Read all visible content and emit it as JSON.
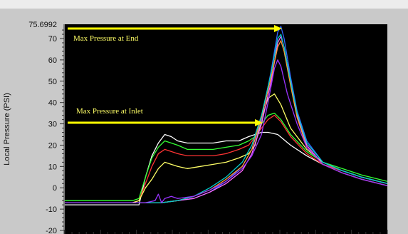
{
  "chart_data": {
    "type": "line",
    "title": "",
    "ylabel": "Local Pressure (PSI)",
    "xlabel": "",
    "ylim": [
      -20,
      75.6992
    ],
    "y_ticks": [
      -20,
      -10,
      0,
      10,
      20,
      30,
      40,
      50,
      60,
      70
    ],
    "y_max_label": "75.6992",
    "x_range": [
      0,
      100
    ],
    "grid": false,
    "legend": "none",
    "annotations": [
      {
        "text": "Max Pressure at End",
        "color": "#ffff00"
      },
      {
        "text": "Max Pressure at Inlet",
        "color": "#ffff00"
      }
    ],
    "series": [
      {
        "color": "#ffffff",
        "points": [
          [
            0,
            -8
          ],
          [
            7,
            -8
          ],
          [
            14,
            -8
          ],
          [
            21,
            -8
          ],
          [
            23,
            -8
          ],
          [
            25,
            5
          ],
          [
            27,
            15
          ],
          [
            29,
            21
          ],
          [
            31,
            25
          ],
          [
            33,
            24
          ],
          [
            35,
            22
          ],
          [
            38,
            21
          ],
          [
            42,
            21
          ],
          [
            46,
            21
          ],
          [
            50,
            22
          ],
          [
            54,
            22
          ],
          [
            57,
            24
          ],
          [
            59,
            25
          ],
          [
            61,
            26
          ],
          [
            63,
            26
          ],
          [
            66,
            25
          ],
          [
            70,
            20
          ],
          [
            75,
            15
          ],
          [
            80,
            11
          ],
          [
            86,
            8
          ],
          [
            92,
            5
          ],
          [
            100,
            2
          ]
        ]
      },
      {
        "color": "#33ff33",
        "points": [
          [
            0,
            -6
          ],
          [
            7,
            -6
          ],
          [
            14,
            -6
          ],
          [
            21,
            -6
          ],
          [
            23,
            -5
          ],
          [
            25,
            5
          ],
          [
            27,
            14
          ],
          [
            29,
            19
          ],
          [
            31,
            22
          ],
          [
            33,
            21
          ],
          [
            35,
            20
          ],
          [
            38,
            18
          ],
          [
            42,
            18
          ],
          [
            46,
            18
          ],
          [
            50,
            19
          ],
          [
            54,
            20
          ],
          [
            57,
            22
          ],
          [
            59,
            24
          ],
          [
            61,
            30
          ],
          [
            63,
            34
          ],
          [
            65,
            35
          ],
          [
            67,
            32
          ],
          [
            70,
            25
          ],
          [
            75,
            17
          ],
          [
            80,
            12
          ],
          [
            86,
            9
          ],
          [
            92,
            6
          ],
          [
            100,
            3
          ]
        ]
      },
      {
        "color": "#ff3333",
        "points": [
          [
            0,
            -7
          ],
          [
            7,
            -7
          ],
          [
            14,
            -7
          ],
          [
            21,
            -7
          ],
          [
            23,
            -6
          ],
          [
            25,
            2
          ],
          [
            27,
            10
          ],
          [
            29,
            16
          ],
          [
            31,
            18
          ],
          [
            33,
            17
          ],
          [
            35,
            16
          ],
          [
            38,
            15
          ],
          [
            42,
            15
          ],
          [
            46,
            15
          ],
          [
            50,
            16
          ],
          [
            54,
            18
          ],
          [
            57,
            20
          ],
          [
            59,
            24
          ],
          [
            61,
            28
          ],
          [
            63,
            32
          ],
          [
            65,
            34
          ],
          [
            67,
            31
          ],
          [
            70,
            24
          ],
          [
            75,
            16
          ],
          [
            80,
            11
          ],
          [
            86,
            8
          ],
          [
            92,
            5
          ],
          [
            100,
            2
          ]
        ]
      },
      {
        "color": "#ffff66",
        "points": [
          [
            0,
            -7
          ],
          [
            7,
            -7
          ],
          [
            14,
            -7
          ],
          [
            21,
            -7
          ],
          [
            23,
            -6
          ],
          [
            25,
            0
          ],
          [
            27,
            4
          ],
          [
            29,
            9
          ],
          [
            31,
            12
          ],
          [
            33,
            11
          ],
          [
            35,
            10
          ],
          [
            38,
            9
          ],
          [
            42,
            10
          ],
          [
            46,
            11
          ],
          [
            50,
            12
          ],
          [
            54,
            14
          ],
          [
            57,
            16
          ],
          [
            59,
            20
          ],
          [
            61,
            32
          ],
          [
            63,
            42
          ],
          [
            65,
            44
          ],
          [
            67,
            39
          ],
          [
            70,
            28
          ],
          [
            75,
            18
          ],
          [
            80,
            12
          ],
          [
            86,
            8
          ],
          [
            92,
            5
          ],
          [
            100,
            2
          ]
        ]
      },
      {
        "color": "#3366ff",
        "points": [
          [
            0,
            -7
          ],
          [
            14,
            -7
          ],
          [
            25,
            -7
          ],
          [
            30,
            -7
          ],
          [
            35,
            -6
          ],
          [
            40,
            -5
          ],
          [
            45,
            -2
          ],
          [
            50,
            3
          ],
          [
            55,
            10
          ],
          [
            58,
            18
          ],
          [
            61,
            32
          ],
          [
            64,
            55
          ],
          [
            66,
            73
          ],
          [
            67,
            75.7
          ],
          [
            68,
            70
          ],
          [
            70,
            52
          ],
          [
            72,
            36
          ],
          [
            75,
            22
          ],
          [
            80,
            12
          ],
          [
            86,
            8
          ],
          [
            92,
            5
          ],
          [
            100,
            2
          ]
        ]
      },
      {
        "color": "#ff66ff",
        "points": [
          [
            0,
            -7
          ],
          [
            14,
            -7
          ],
          [
            25,
            -7
          ],
          [
            30,
            -7
          ],
          [
            35,
            -6
          ],
          [
            40,
            -5
          ],
          [
            45,
            -2
          ],
          [
            50,
            2
          ],
          [
            55,
            8
          ],
          [
            58,
            16
          ],
          [
            61,
            30
          ],
          [
            64,
            50
          ],
          [
            66,
            68
          ],
          [
            67,
            71
          ],
          [
            68,
            66
          ],
          [
            70,
            50
          ],
          [
            72,
            34
          ],
          [
            75,
            20
          ],
          [
            80,
            11
          ],
          [
            86,
            7
          ],
          [
            92,
            4
          ],
          [
            100,
            1
          ]
        ]
      },
      {
        "color": "#ff9933",
        "points": [
          [
            0,
            -7
          ],
          [
            14,
            -7
          ],
          [
            25,
            -7
          ],
          [
            30,
            -7
          ],
          [
            35,
            -6
          ],
          [
            40,
            -4
          ],
          [
            45,
            -1
          ],
          [
            50,
            4
          ],
          [
            55,
            10
          ],
          [
            58,
            18
          ],
          [
            61,
            33
          ],
          [
            64,
            52
          ],
          [
            66,
            66
          ],
          [
            67,
            69
          ],
          [
            68,
            64
          ],
          [
            70,
            48
          ],
          [
            72,
            33
          ],
          [
            75,
            19
          ],
          [
            80,
            11
          ],
          [
            86,
            7
          ],
          [
            92,
            4
          ],
          [
            100,
            1
          ]
        ]
      },
      {
        "color": "#00cccc",
        "points": [
          [
            0,
            -7
          ],
          [
            14,
            -7
          ],
          [
            25,
            -7
          ],
          [
            30,
            -7
          ],
          [
            35,
            -6
          ],
          [
            40,
            -4
          ],
          [
            45,
            0
          ],
          [
            50,
            5
          ],
          [
            55,
            12
          ],
          [
            58,
            20
          ],
          [
            61,
            34
          ],
          [
            64,
            54
          ],
          [
            66,
            70
          ],
          [
            67,
            72
          ],
          [
            68,
            66
          ],
          [
            70,
            50
          ],
          [
            72,
            35
          ],
          [
            75,
            21
          ],
          [
            80,
            12
          ],
          [
            86,
            8
          ],
          [
            92,
            5
          ],
          [
            100,
            2
          ]
        ]
      },
      {
        "color": "#9933ff",
        "points": [
          [
            0,
            -7
          ],
          [
            14,
            -7
          ],
          [
            25,
            -7
          ],
          [
            28,
            -6
          ],
          [
            29,
            -3
          ],
          [
            30,
            -7
          ],
          [
            31,
            -5
          ],
          [
            33,
            -4
          ],
          [
            35,
            -5
          ],
          [
            40,
            -4
          ],
          [
            45,
            -1
          ],
          [
            50,
            3
          ],
          [
            55,
            9
          ],
          [
            58,
            15
          ],
          [
            61,
            25
          ],
          [
            63,
            40
          ],
          [
            65,
            56
          ],
          [
            66,
            60
          ],
          [
            67,
            57
          ],
          [
            69,
            44
          ],
          [
            72,
            30
          ],
          [
            75,
            19
          ],
          [
            80,
            11
          ],
          [
            86,
            7
          ],
          [
            92,
            4
          ],
          [
            100,
            1
          ]
        ]
      }
    ]
  }
}
